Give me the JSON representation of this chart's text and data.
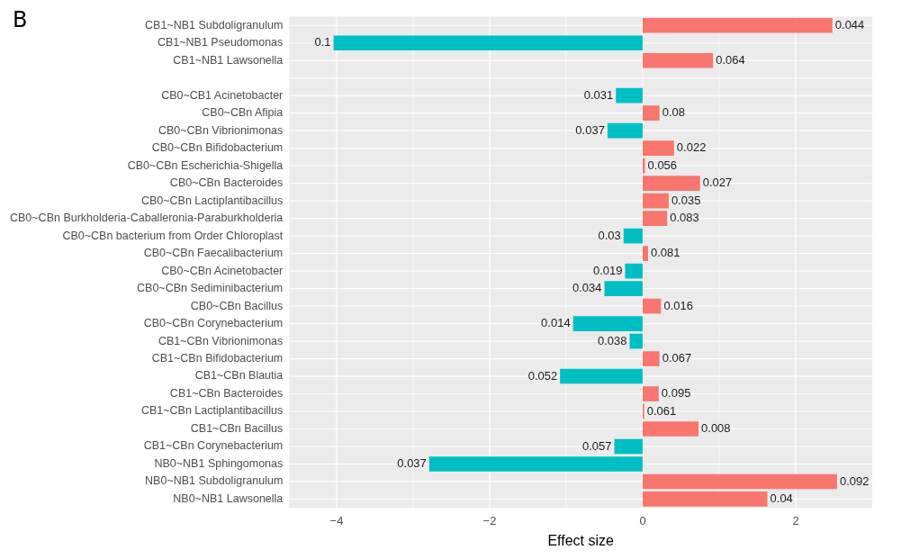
{
  "chart_data": {
    "type": "bar",
    "orientation": "horizontal",
    "xlabel": "Effect size",
    "annotations": [
      "B",
      {
        "text": "0.044",
        "x": 2.48,
        "y": "CB1~NB1 Subdoligranulum"
      },
      {
        "text": "0.1",
        "x": -4.04,
        "y": "CB1~NB1 Pseudomonas"
      },
      {
        "text": "0.064",
        "x": 0.92,
        "y": "CB1~NB1 Lawsonella"
      },
      {
        "text": "0.031",
        "x": -0.35,
        "y": "CB0~CB1 Acinetobacter"
      },
      {
        "text": "0.08",
        "x": 0.22,
        "y": "CB0~CBn Afipia"
      },
      {
        "text": "0.037",
        "x": -0.46,
        "y": "CB0~CBn Vibrionimonas"
      },
      {
        "text": "0.022",
        "x": 0.41,
        "y": "CB0~CBn Bifidobacterium"
      },
      {
        "text": "0.056",
        "x": 0.03,
        "y": "CB0~CBn Escherichia-Shigella"
      },
      {
        "text": "0.027",
        "x": 0.75,
        "y": "CB0~CBn Bacteroides"
      },
      {
        "text": "0.035",
        "x": 0.34,
        "y": "CB0~CBn Lactiplantibacillus"
      },
      {
        "text": "0.083",
        "x": 0.32,
        "y": "CB0~CBn Burkholderia-Caballeronia-Paraburkholderia"
      },
      {
        "text": "0.03",
        "x": -0.25,
        "y": "CB0~CBn bacterium from Order Chloroplast"
      },
      {
        "text": "0.081",
        "x": 0.07,
        "y": "CB0~CBn Faecalibacterium"
      },
      {
        "text": "0.019",
        "x": -0.23,
        "y": "CB0~CBn Acinetobacter"
      },
      {
        "text": "0.034",
        "x": -0.5,
        "y": "CB0~CBn Sediminibacterium"
      },
      {
        "text": "0.016",
        "x": 0.24,
        "y": "CB0~CBn Bacillus"
      },
      {
        "text": "0.014",
        "x": -0.91,
        "y": "CB0~CBn Corynebacterium"
      },
      {
        "text": "0.038",
        "x": -0.17,
        "y": "CB1~CBn Vibrionimonas"
      },
      {
        "text": "0.067",
        "x": 0.22,
        "y": "CB1~CBn Bifidobacterium"
      },
      {
        "text": "0.052",
        "x": -1.08,
        "y": "CB1~CBn Blautia"
      },
      {
        "text": "0.095",
        "x": 0.21,
        "y": "CB1~CBn Bacteroides"
      },
      {
        "text": "0.061",
        "x": 0.02,
        "y": "CB1~CBn Lactiplantibacillus"
      },
      {
        "text": "0.008",
        "x": 0.73,
        "y": "CB1~CBn Bacillus"
      },
      {
        "text": "0.057",
        "x": -0.37,
        "y": "CB1~CBn Corynebacterium"
      },
      {
        "text": "0.037",
        "x": -2.79,
        "y": "NB0~NB1 Sphingomonas"
      },
      {
        "text": "0.092",
        "x": 2.54,
        "y": "NB0~NB1 Subdoligranulum"
      },
      {
        "text": "0.04",
        "x": 1.63,
        "y": "NB0~NB1 Lawsonella"
      }
    ],
    "categories": [
      "CB1~NB1 Subdoligranulum",
      "CB1~NB1 Pseudomonas",
      "CB1~NB1 Lawsonella",
      null,
      "CB0~CB1 Acinetobacter",
      "CB0~CBn Afipia",
      "CB0~CBn Vibrionimonas",
      "CB0~CBn Bifidobacterium",
      "CB0~CBn Escherichia-Shigella",
      "CB0~CBn Bacteroides",
      "CB0~CBn Lactiplantibacillus",
      "CB0~CBn Burkholderia-Caballeronia-Paraburkholderia",
      "CB0~CBn bacterium from Order Chloroplast",
      "CB0~CBn Faecalibacterium",
      "CB0~CBn Acinetobacter",
      "CB0~CBn Sediminibacterium",
      "CB0~CBn Bacillus",
      "CB0~CBn Corynebacterium",
      "CB1~CBn Vibrionimonas",
      "CB1~CBn Bifidobacterium",
      "CB1~CBn Blautia",
      "CB1~CBn Bacteroides",
      "CB1~CBn Lactiplantibacillus",
      "CB1~CBn Bacillus",
      "CB1~CBn Corynebacterium",
      "NB0~NB1 Sphingomonas",
      "NB0~NB1 Subdoligranulum",
      "NB0~NB1 Lawsonella"
    ],
    "values": [
      2.48,
      -4.04,
      0.92,
      null,
      -0.35,
      0.22,
      -0.46,
      0.41,
      0.03,
      0.75,
      0.34,
      0.32,
      -0.25,
      0.07,
      -0.23,
      -0.5,
      0.24,
      -0.91,
      -0.17,
      0.22,
      -1.08,
      0.21,
      0.02,
      0.73,
      -0.37,
      -2.79,
      2.54,
      1.63
    ],
    "colors": [
      "#f8766d",
      "#00bfc4",
      "#f8766d",
      null,
      "#00bfc4",
      "#f8766d",
      "#00bfc4",
      "#f8766d",
      "#f8766d",
      "#f8766d",
      "#f8766d",
      "#f8766d",
      "#00bfc4",
      "#f8766d",
      "#00bfc4",
      "#00bfc4",
      "#f8766d",
      "#00bfc4",
      "#00bfc4",
      "#f8766d",
      "#00bfc4",
      "#f8766d",
      "#f8766d",
      "#f8766d",
      "#00bfc4",
      "#00bfc4",
      "#f8766d",
      "#f8766d"
    ],
    "xlim": [
      -4.62,
      3.0
    ],
    "xticks": [
      -4,
      -2,
      0,
      2
    ],
    "grid": true
  }
}
